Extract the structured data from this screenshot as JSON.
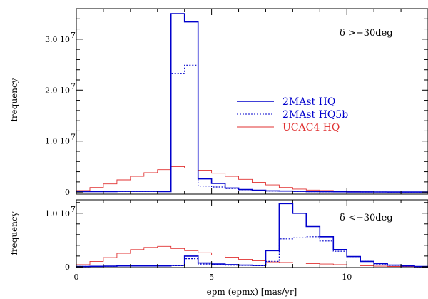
{
  "chart_data": [
    {
      "type": "line",
      "step": true,
      "panel_label": "δ >−30deg",
      "ylabel": "frequency",
      "xlabel": "",
      "xlim": [
        0,
        13
      ],
      "ylim": [
        -400000,
        36000000
      ],
      "ytick_values": [
        0,
        10000000,
        20000000,
        30000000
      ],
      "ytick_labels": [
        "0",
        "1.0  10",
        "2.0  10",
        "3.0  10"
      ],
      "ytick_exponents": [
        "",
        "7",
        "7",
        "7"
      ],
      "x_bin_edges": [
        0,
        0.5,
        1,
        1.5,
        2,
        2.5,
        3,
        3.5,
        4,
        4.5,
        5,
        5.5,
        6,
        6.5,
        7,
        7.5,
        8,
        8.5,
        9,
        9.5,
        10,
        10.5,
        11,
        11.5,
        12,
        12.5,
        13
      ],
      "legend": {
        "placement": "center-right",
        "entries": [
          {
            "label": "2MAst  HQ",
            "color": "#0000cc",
            "style": "solid"
          },
          {
            "label": "2MAst  HQ5b",
            "color": "#0000cc",
            "style": "dotted"
          },
          {
            "label": "UCAC4  HQ",
            "color": "#e03030",
            "style": "solid"
          }
        ]
      },
      "series": [
        {
          "name": "2MAst  HQ",
          "color": "#0000cc",
          "dash": "",
          "width": 1.6,
          "values": [
            100000,
            100000,
            100000,
            150000,
            150000,
            150000,
            100000,
            35000000,
            33400000,
            2600000,
            1700000,
            800000,
            500000,
            350000,
            250000,
            200000,
            150000,
            100000,
            80000,
            60000,
            40000,
            30000,
            20000,
            10000,
            5000,
            0
          ]
        },
        {
          "name": "2MAst  HQ5b",
          "color": "#0000cc",
          "dash": "2,2",
          "width": 1.2,
          "values": [
            100000,
            100000,
            100000,
            150000,
            150000,
            150000,
            100000,
            23300000,
            24900000,
            1200000,
            1000000,
            700000,
            450000,
            300000,
            220000,
            180000,
            130000,
            90000,
            70000,
            50000,
            35000,
            25000,
            15000,
            10000,
            5000,
            0
          ]
        },
        {
          "name": "UCAC4  HQ",
          "color": "#e03030",
          "dash": "",
          "width": 0.9,
          "values": [
            300000,
            900000,
            1600000,
            2400000,
            3100000,
            3800000,
            4400000,
            5000000,
            4700000,
            4300000,
            3700000,
            3100000,
            2500000,
            1900000,
            1400000,
            900000,
            600000,
            400000,
            300000,
            200000,
            100000,
            50000,
            0,
            0,
            0,
            0
          ]
        }
      ]
    },
    {
      "type": "line",
      "step": true,
      "panel_label": "δ <−30deg",
      "ylabel": "frequency",
      "xlabel": "epm (epmx) [mas/yr]",
      "xlim": [
        0,
        13
      ],
      "ylim": [
        -150000,
        12500000
      ],
      "ytick_values": [
        0,
        10000000
      ],
      "ytick_labels": [
        "0",
        "1.0  10"
      ],
      "ytick_exponents": [
        "",
        "7"
      ],
      "xtick_values": [
        0,
        5,
        10
      ],
      "xtick_labels": [
        "0",
        "5",
        "10"
      ],
      "x_bin_edges": [
        0,
        0.5,
        1,
        1.5,
        2,
        2.5,
        3,
        3.5,
        4,
        4.5,
        5,
        5.5,
        6,
        6.5,
        7,
        7.5,
        8,
        8.5,
        9,
        9.5,
        10,
        10.5,
        11,
        11.5,
        12,
        12.5,
        13
      ],
      "series": [
        {
          "name": "2MAst  HQ",
          "color": "#0000cc",
          "dash": "",
          "width": 1.6,
          "values": [
            50000,
            80000,
            100000,
            150000,
            150000,
            150000,
            150000,
            250000,
            2000000,
            700000,
            500000,
            400000,
            300000,
            250000,
            3000000,
            11800000,
            10000000,
            7500000,
            5600000,
            3200000,
            1900000,
            1000000,
            600000,
            300000,
            150000,
            50000
          ]
        },
        {
          "name": "2MAst  HQ5b",
          "color": "#0000cc",
          "dash": "2,2",
          "width": 1.2,
          "values": [
            50000,
            80000,
            100000,
            150000,
            150000,
            150000,
            150000,
            200000,
            1500000,
            500000,
            400000,
            300000,
            250000,
            200000,
            1000000,
            5200000,
            5400000,
            5600000,
            4800000,
            2900000,
            1900000,
            1000000,
            500000,
            250000,
            100000,
            30000
          ]
        },
        {
          "name": "UCAC4  HQ",
          "color": "#e03030",
          "dash": "",
          "width": 0.9,
          "values": [
            400000,
            1000000,
            1700000,
            2500000,
            3200000,
            3600000,
            3800000,
            3400000,
            3000000,
            2600000,
            2200000,
            1800000,
            1400000,
            1100000,
            900000,
            800000,
            700000,
            600000,
            500000,
            400000,
            300000,
            200000,
            100000,
            50000,
            30000,
            10000
          ]
        }
      ]
    }
  ]
}
